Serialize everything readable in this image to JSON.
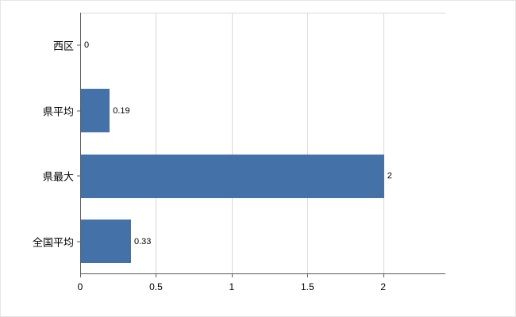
{
  "chart_data": {
    "type": "bar",
    "orientation": "horizontal",
    "title": "",
    "xlabel": "",
    "ylabel": "",
    "categories": [
      "西区",
      "県平均",
      "県最大",
      "全国平均"
    ],
    "values": [
      0,
      0.19,
      2,
      0.33
    ],
    "value_labels": [
      "0",
      "0.19",
      "2",
      "0.33"
    ],
    "xticks": [
      0,
      0.5,
      1,
      1.5,
      2
    ],
    "xtick_labels": [
      "0",
      "0.5",
      "1",
      "1.5",
      "2"
    ],
    "xlim": [
      0,
      2.41
    ],
    "grid": true,
    "legend": "none",
    "colors": {
      "bar": "#4472a8",
      "grid": "#d9d9d9",
      "axis": "#595959",
      "text": "#000000",
      "background": "#ffffff"
    }
  }
}
